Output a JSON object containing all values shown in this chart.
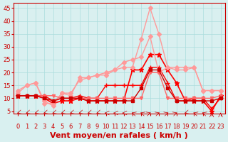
{
  "x": [
    0,
    1,
    2,
    3,
    4,
    5,
    6,
    7,
    8,
    9,
    10,
    11,
    12,
    13,
    14,
    15,
    16,
    17,
    18,
    19,
    20,
    21,
    22,
    23
  ],
  "series": [
    {
      "color": "#ff0000",
      "lw": 1.0,
      "marker": "+",
      "ms": 4,
      "y": [
        11,
        11,
        11,
        11,
        9,
        10,
        10,
        11,
        10,
        10,
        15,
        15,
        15,
        15,
        15,
        22,
        22,
        16,
        9,
        9,
        10,
        10,
        6,
        10
      ]
    },
    {
      "color": "#ff0000",
      "lw": 1.2,
      "marker": "*",
      "ms": 5,
      "y": [
        11,
        11,
        11,
        10,
        8,
        9,
        9,
        10,
        9,
        9,
        9,
        9,
        9,
        21,
        21,
        27,
        27,
        21,
        16,
        9,
        9,
        9,
        5,
        11
      ]
    },
    {
      "color": "#ff9999",
      "lw": 1.0,
      "marker": "D",
      "ms": 3,
      "y": [
        12,
        15,
        16,
        8,
        8,
        12,
        11,
        18,
        18,
        19,
        20,
        21,
        24,
        25,
        26,
        34,
        20,
        22,
        22,
        22,
        22,
        13,
        13,
        13
      ]
    },
    {
      "color": "#ff9999",
      "lw": 1.0,
      "marker": "D",
      "ms": 3,
      "y": [
        13,
        15,
        16,
        9,
        7,
        12,
        12,
        17,
        18,
        19,
        19,
        21,
        22,
        22,
        33,
        45,
        35,
        22,
        21,
        21,
        22,
        13,
        13,
        13
      ]
    },
    {
      "color": "#ff6666",
      "lw": 1.0,
      "marker": "v",
      "ms": 3,
      "y": [
        11,
        11,
        11,
        11,
        11,
        10,
        10,
        10,
        10,
        10,
        10,
        10,
        10,
        10,
        10,
        20,
        20,
        10,
        10,
        10,
        10,
        10,
        10,
        11
      ]
    },
    {
      "color": "#cc0000",
      "lw": 1.0,
      "marker": "s",
      "ms": 3,
      "y": [
        11,
        11,
        11,
        10,
        9,
        10,
        10,
        10,
        9,
        9,
        9,
        9,
        9,
        9,
        14,
        21,
        21,
        14,
        9,
        9,
        9,
        9,
        9,
        10
      ]
    }
  ],
  "xlim": [
    -0.5,
    23.5
  ],
  "ylim": [
    4,
    47
  ],
  "yticks": [
    5,
    10,
    15,
    20,
    25,
    30,
    35,
    40,
    45
  ],
  "xticks": [
    0,
    1,
    2,
    3,
    4,
    5,
    6,
    7,
    8,
    9,
    10,
    11,
    12,
    13,
    14,
    15,
    16,
    17,
    18,
    19,
    20,
    21,
    22,
    23
  ],
  "xlabel": "Vent moyen/en rafales ( km/h )",
  "xlabel_color": "#cc0000",
  "xlabel_fontsize": 8,
  "grid_color": "#aadddd",
  "bg_color": "#d9f0f0",
  "tick_color": "#cc0000",
  "tick_fontsize": 6,
  "wind_arrows": [
    225,
    225,
    225,
    225,
    225,
    225,
    225,
    225,
    225,
    225,
    270,
    270,
    270,
    315,
    315,
    45,
    45,
    45,
    45,
    225,
    315,
    315,
    0,
    0
  ]
}
